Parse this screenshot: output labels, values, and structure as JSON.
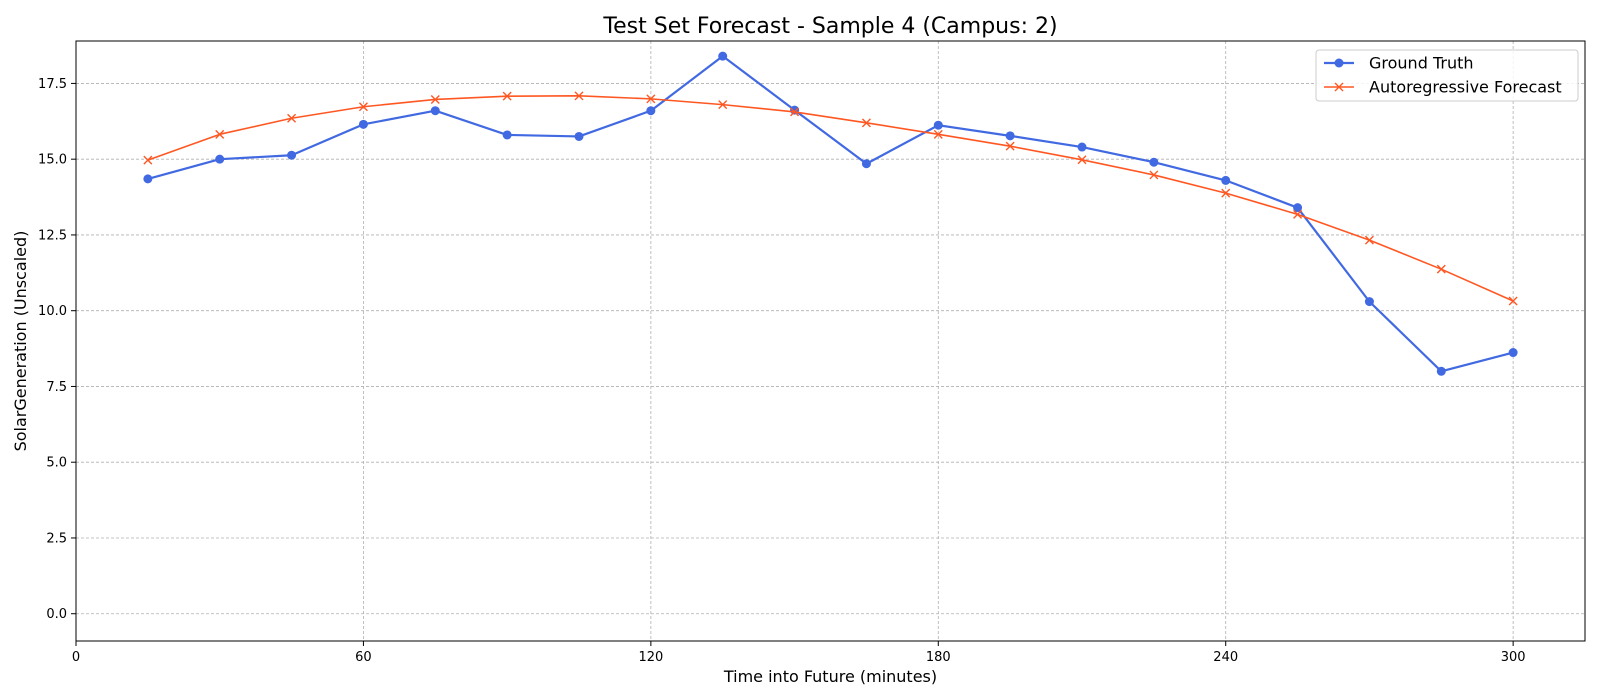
{
  "chart_data": {
    "type": "line",
    "title": "Test Set Forecast - Sample 4 (Campus: 2)",
    "xlabel": "Time into Future (minutes)",
    "ylabel": "SolarGeneration (Unscaled)",
    "xlim": [
      0,
      315
    ],
    "ylim": [
      -0.9,
      18.9
    ],
    "xticks": [
      0,
      60,
      120,
      180,
      240,
      300
    ],
    "yticks": [
      0.0,
      2.5,
      5.0,
      7.5,
      10.0,
      12.5,
      15.0,
      17.5
    ],
    "ytick_labels": [
      "0.0",
      "2.5",
      "5.0",
      "7.5",
      "10.0",
      "12.5",
      "15.0",
      "17.5"
    ],
    "grid": true,
    "legend_position": "top-right",
    "x": [
      15,
      30,
      45,
      60,
      75,
      90,
      105,
      120,
      135,
      150,
      165,
      180,
      195,
      210,
      225,
      240,
      255,
      270,
      285,
      300
    ],
    "series": [
      {
        "name": "Ground Truth",
        "color": "#4169e1",
        "marker": "circle",
        "values": [
          14.35,
          15.0,
          15.13,
          16.15,
          16.6,
          15.8,
          15.75,
          16.6,
          18.4,
          16.62,
          14.85,
          16.12,
          15.77,
          15.4,
          14.9,
          14.3,
          13.4,
          10.3,
          8.0,
          8.62
        ]
      },
      {
        "name": "Autoregressive Forecast",
        "color": "#ff5722",
        "marker": "x",
        "values": [
          14.97,
          15.82,
          16.35,
          16.73,
          16.97,
          17.08,
          17.09,
          16.99,
          16.8,
          16.56,
          16.2,
          15.82,
          15.43,
          14.98,
          14.48,
          13.88,
          13.18,
          12.33,
          11.37,
          10.32
        ]
      }
    ]
  }
}
